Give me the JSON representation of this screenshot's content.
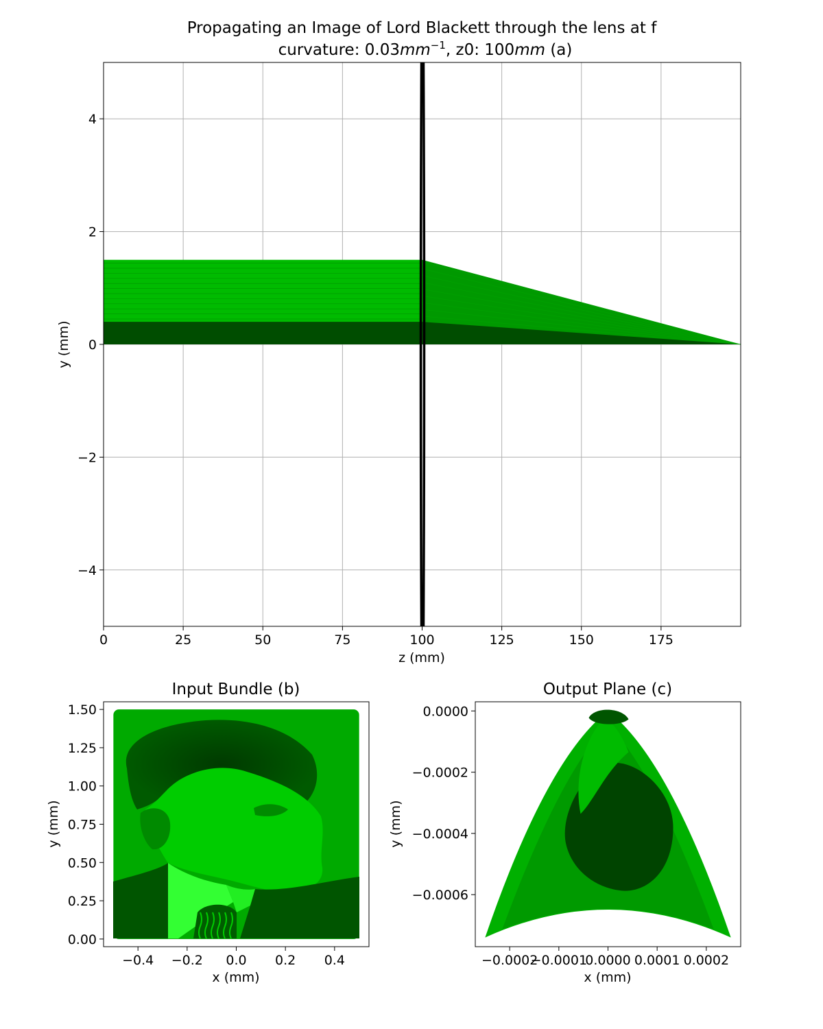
{
  "figure": {
    "title_line1": "Propagating an Image of Lord Blackett through the lens at f",
    "title_line2_prefix": "curvature: 0.03",
    "title_line2_unit1": "mm",
    "title_line2_sup": "−1",
    "title_line2_mid": ", z0: 100",
    "title_line2_unit2": "mm",
    "title_line2_suffix": " (a)"
  },
  "colors": {
    "bright_green": "#00bb00",
    "mid_green": "#009900",
    "dark_green": "#004d00",
    "lens": "#000000",
    "grid": "#b0b0b0"
  },
  "chart_data": [
    {
      "id": "a",
      "type": "line",
      "title": "Propagating an Image of Lord Blackett through the lens at f curvature: 0.03mm^-1, z0: 100mm (a)",
      "xlabel": "z (mm)",
      "ylabel": "y (mm)",
      "xlim": [
        0,
        200
      ],
      "ylim": [
        -5,
        5
      ],
      "grid": true,
      "x_ticks": [
        0,
        25,
        50,
        75,
        100,
        125,
        150,
        175
      ],
      "x_tick_labels": [
        "0",
        "25",
        "50",
        "75",
        "100",
        "125",
        "150",
        "175"
      ],
      "y_ticks": [
        -4,
        -2,
        0,
        2,
        4
      ],
      "y_tick_labels": [
        "−4",
        "−2",
        "0",
        "2",
        "4"
      ],
      "lens": {
        "z": 100,
        "curvature": 0.03
      },
      "bundle": {
        "y_min": 0,
        "y_max": 1.5,
        "dark_band_max": 0.4,
        "z_start": 0,
        "z_lens": 100,
        "z_focus": 200
      }
    },
    {
      "id": "b",
      "type": "scatter",
      "title": "Input Bundle (b)",
      "xlabel": "x (mm)",
      "ylabel": "y (mm)",
      "xlim": [
        -0.54,
        0.54
      ],
      "ylim": [
        -0.05,
        1.55
      ],
      "x_ticks": [
        -0.4,
        -0.2,
        0.0,
        0.2,
        0.4
      ],
      "x_tick_labels": [
        "−0.4",
        "−0.2",
        "0.0",
        "0.2",
        "0.4"
      ],
      "y_ticks": [
        0.0,
        0.25,
        0.5,
        0.75,
        1.0,
        1.25,
        1.5
      ],
      "y_tick_labels": [
        "0.00",
        "0.25",
        "0.50",
        "0.75",
        "1.00",
        "1.25",
        "1.50"
      ],
      "point_region": {
        "x": [
          -0.5,
          0.5
        ],
        "y": [
          0,
          1.5
        ]
      }
    },
    {
      "id": "c",
      "type": "scatter",
      "title": "Output Plane (c)",
      "xlabel": "x (mm)",
      "ylabel": "y (mm)",
      "xlim": [
        -0.00027,
        0.00027
      ],
      "ylim": [
        -0.00077,
        3e-05
      ],
      "x_ticks": [
        -0.0002,
        -0.0001,
        0.0,
        0.0001,
        0.0002
      ],
      "x_tick_labels": [
        "−0.0002",
        "−0.0001",
        "0.0000",
        "0.0001",
        "0.0002"
      ],
      "y_ticks": [
        0.0,
        -0.0002,
        -0.0004,
        -0.0006
      ],
      "y_tick_labels": [
        "0.0000",
        "−0.0002",
        "−0.0004",
        "−0.0006"
      ],
      "outline": {
        "apex": [
          0.0,
          0.0
        ],
        "left_corner": [
          -0.00025,
          -0.00074
        ],
        "right_corner": [
          0.00025,
          -0.00074
        ],
        "bottom_arc_top": -0.00067
      }
    }
  ]
}
